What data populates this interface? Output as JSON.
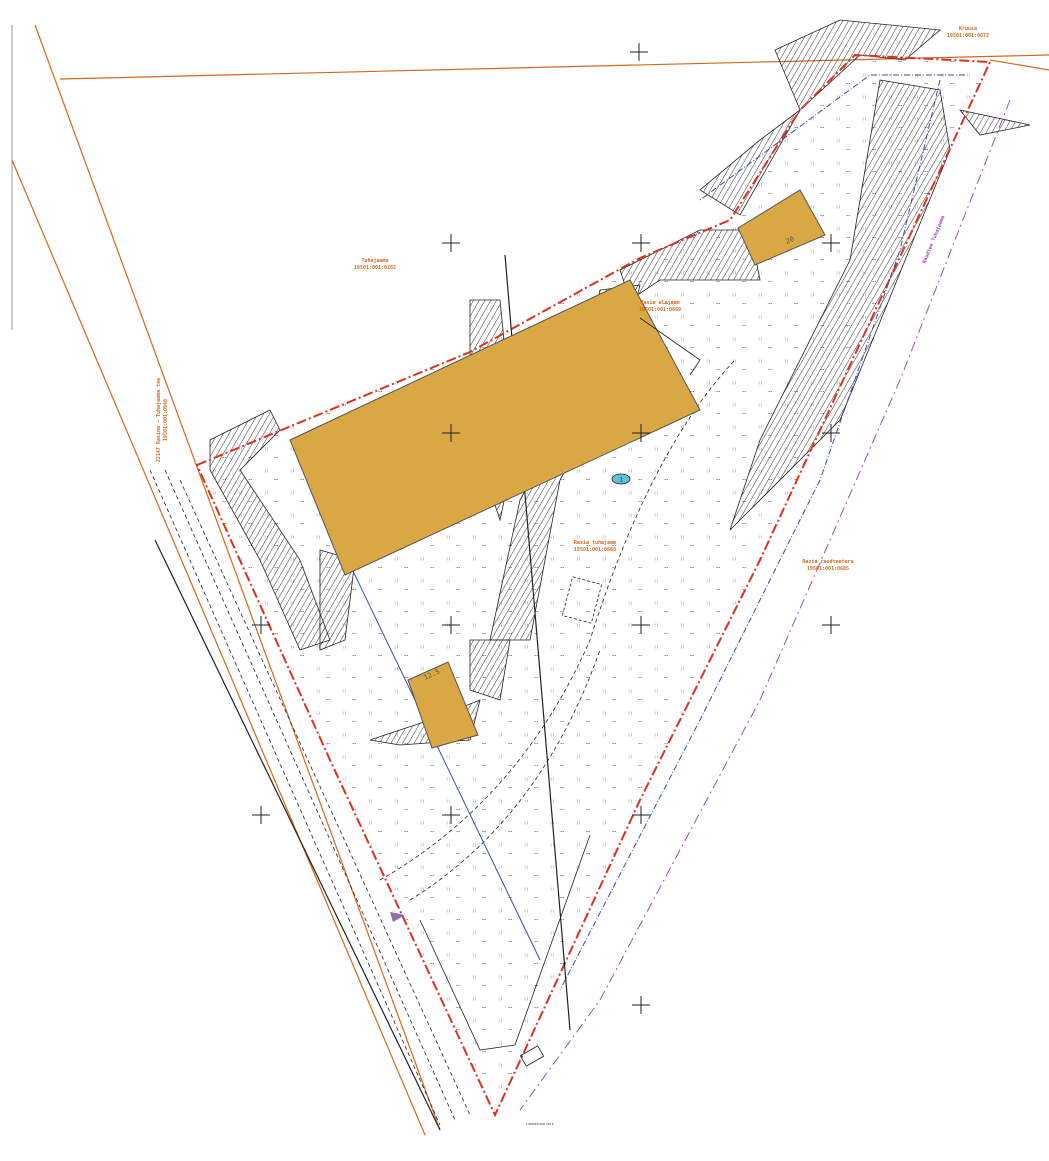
{
  "labels": {
    "north_parcel": [
      "Kruusa",
      "19501:001:0672"
    ],
    "west_parcel": [
      "Tuhajaama",
      "19501:001:0282"
    ],
    "small_parcel": [
      "Rasia alajaam",
      "19501:001:0669"
    ],
    "center_parcel": [
      "Rasia tuhajaam",
      "19501:001:0668"
    ],
    "east_parcel": [
      "Rasia raudteetaru",
      "19501:001:0685"
    ],
    "road_parcel": [
      "22147 Rasina - Tuhajaama tee",
      "19501:001:0948"
    ],
    "railway": "Raudtee Tuhajaama"
  },
  "pads": {
    "north": "20",
    "south": "12.5"
  },
  "marker": "1",
  "bottom_note": "Ladustusplats"
}
